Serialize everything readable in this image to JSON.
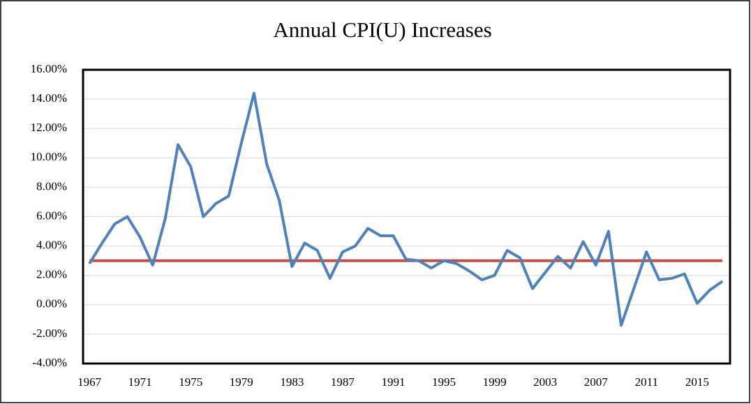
{
  "chart_data": {
    "type": "line",
    "title": "Annual CPI(U) Increases",
    "x": [
      1967,
      1968,
      1969,
      1970,
      1971,
      1972,
      1973,
      1974,
      1975,
      1976,
      1977,
      1978,
      1979,
      1980,
      1981,
      1982,
      1983,
      1984,
      1985,
      1986,
      1987,
      1988,
      1989,
      1990,
      1991,
      1992,
      1993,
      1994,
      1995,
      1996,
      1997,
      1998,
      1999,
      2000,
      2001,
      2002,
      2003,
      2004,
      2005,
      2006,
      2007,
      2008,
      2009,
      2010,
      2011,
      2012,
      2013,
      2014,
      2015,
      2016,
      2017
    ],
    "series": [
      {
        "color": "#4f81bd",
        "values": [
          2.8,
          4.2,
          5.5,
          6.0,
          4.6,
          2.7,
          5.9,
          10.9,
          9.4,
          6.0,
          6.9,
          7.4,
          11.0,
          14.4,
          9.6,
          7.1,
          2.6,
          4.2,
          3.7,
          1.8,
          3.6,
          4.0,
          5.2,
          4.7,
          4.7,
          3.1,
          3.0,
          2.5,
          3.0,
          2.8,
          2.3,
          1.7,
          2.0,
          3.7,
          3.2,
          1.1,
          2.2,
          3.3,
          2.5,
          4.3,
          2.7,
          5.0,
          -1.4,
          1.1,
          3.6,
          1.7,
          1.8,
          2.1,
          0.1,
          1.0,
          1.6
        ]
      },
      {
        "color": "#c0504d",
        "values": [
          3,
          3,
          3,
          3,
          3,
          3,
          3,
          3,
          3,
          3,
          3,
          3,
          3,
          3,
          3,
          3,
          3,
          3,
          3,
          3,
          3,
          3,
          3,
          3,
          3,
          3,
          3,
          3,
          3,
          3,
          3,
          3,
          3,
          3,
          3,
          3,
          3,
          3,
          3,
          3,
          3,
          3,
          3,
          3,
          3,
          3,
          3,
          3,
          3,
          3,
          3
        ]
      }
    ],
    "xlim": [
      1966.5,
      2017.6
    ],
    "xticks": [
      1967,
      1971,
      1975,
      1979,
      1983,
      1987,
      1991,
      1995,
      1999,
      2003,
      2007,
      2011,
      2015
    ],
    "ylim": [
      -4,
      16
    ],
    "yticks": [
      {
        "value": -4,
        "label": "-4.00%"
      },
      {
        "value": -2,
        "label": "-2.00%"
      },
      {
        "value": 0,
        "label": "0.00%"
      },
      {
        "value": 2,
        "label": "2.00%"
      },
      {
        "value": 4,
        "label": "4.00%"
      },
      {
        "value": 6,
        "label": "6.00%"
      },
      {
        "value": 8,
        "label": "8.00%"
      },
      {
        "value": 10,
        "label": "10.00%"
      },
      {
        "value": 12,
        "label": "12.00%"
      },
      {
        "value": 14,
        "label": "14.00%"
      },
      {
        "value": 16,
        "label": "16.00%"
      }
    ],
    "grid": true
  }
}
